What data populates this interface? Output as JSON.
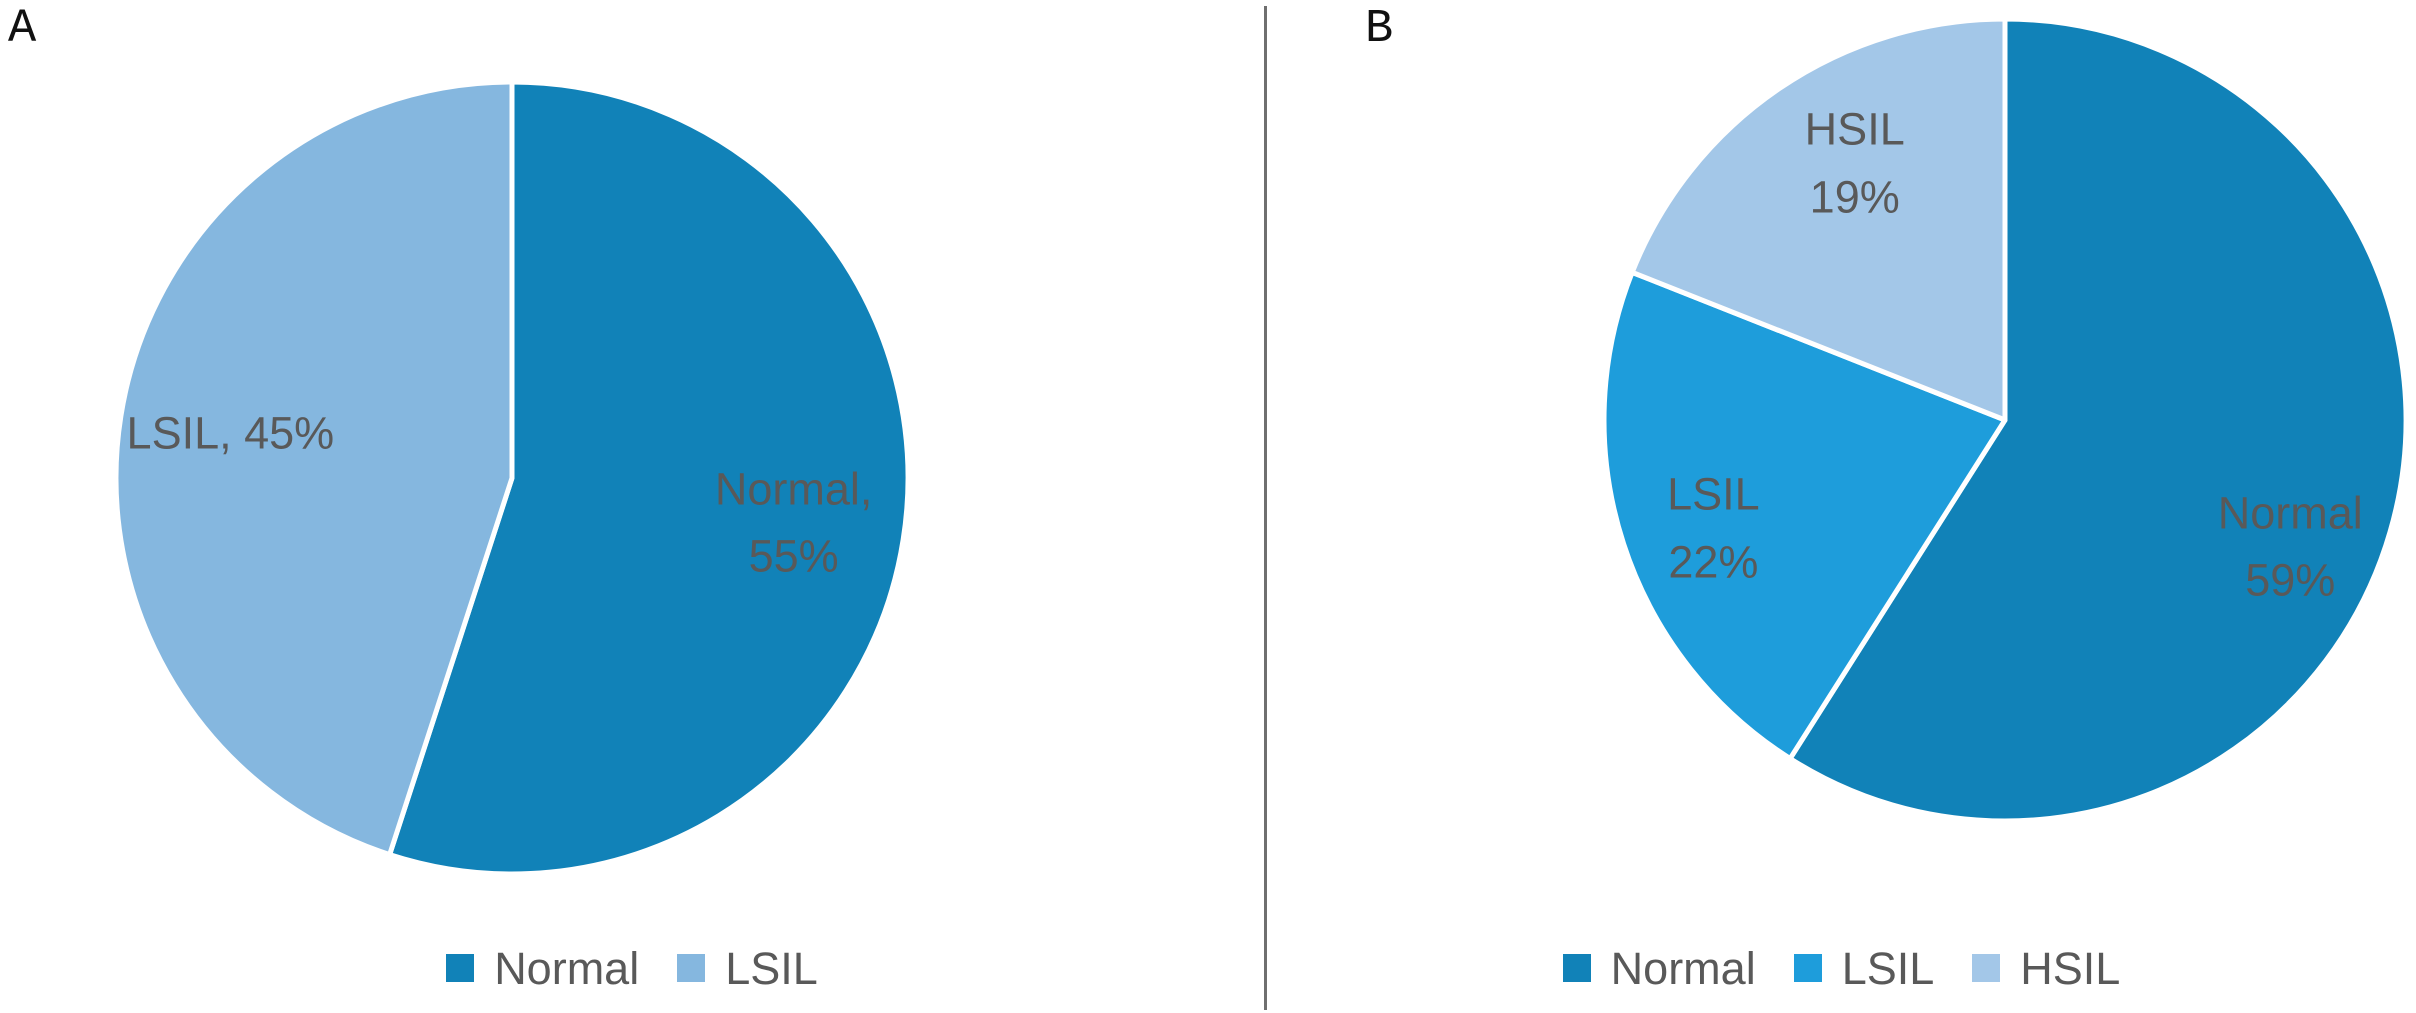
{
  "figure": {
    "background": "#ffffff",
    "divider_color": "#6F6F6F",
    "label_text_color": "#595959",
    "panel_letter_color": "#111111"
  },
  "panels": [
    {
      "letter": "A"
    },
    {
      "letter": "B"
    }
  ],
  "chart_data": [
    {
      "type": "pie",
      "panel": "A",
      "title": "",
      "start_angle_deg": 0,
      "direction": "clockwise",
      "legend_position": "bottom",
      "label_color": "#595959",
      "slices": [
        {
          "label": "Normal",
          "value": 55,
          "color": "#1182B8",
          "label_lines": [
            "Normal,",
            "55%"
          ]
        },
        {
          "label": "LSIL",
          "value": 45,
          "color": "#85B7DF",
          "label_lines": [
            "LSIL, 45%"
          ]
        }
      ]
    },
    {
      "type": "pie",
      "panel": "B",
      "title": "",
      "start_angle_deg": 0,
      "direction": "clockwise",
      "legend_position": "bottom",
      "label_color": "#595959",
      "slices": [
        {
          "label": "Normal",
          "value": 59,
          "color": "#1182B8",
          "label_lines": [
            "Normal",
            "59%"
          ]
        },
        {
          "label": "LSIL",
          "value": 22,
          "color": "#1E9DDB",
          "label_lines": [
            "LSIL",
            "22%"
          ]
        },
        {
          "label": "HSIL",
          "value": 19,
          "color": "#A3C7E8",
          "label_lines": [
            "HSIL",
            "19%"
          ]
        }
      ]
    }
  ]
}
